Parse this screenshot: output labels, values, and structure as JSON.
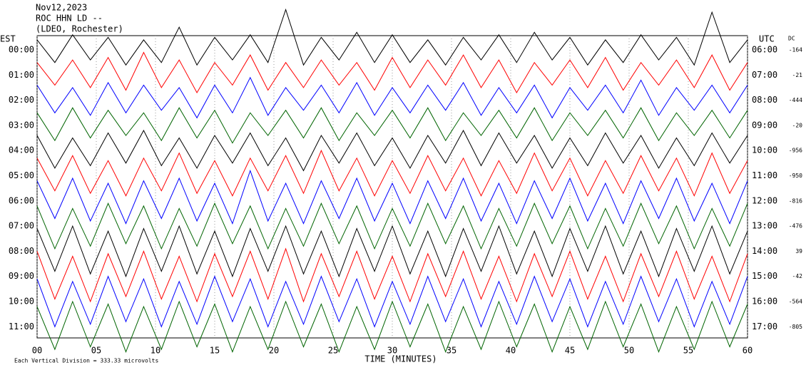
{
  "chart_data": {
    "type": "helicorder",
    "title": "Nov12,2023",
    "subtitle": "ROC HHN LD --",
    "station": "(LDEO, Rochester)",
    "left_axis_label": "EST",
    "right_axis_label": "UTC",
    "dc_label": "DC",
    "xlabel": "TIME (MINUTES)",
    "footnote": "Each Vertical Division = 333.33 microvolts",
    "xlim": [
      0,
      60
    ],
    "xticks": [
      {
        "value": 0,
        "label": "00"
      },
      {
        "value": 5,
        "label": "05"
      },
      10,
      15,
      20,
      25,
      30,
      35,
      40,
      45,
      50,
      55,
      60
    ],
    "x": [
      0,
      1.5,
      3,
      4.5,
      6,
      7.5,
      9,
      10.5,
      12,
      13.5,
      15,
      16.5,
      18,
      19.5,
      21,
      22.5,
      24,
      25.5,
      27,
      28.5,
      30,
      31.5,
      33,
      34.5,
      36,
      37.5,
      39,
      40.5,
      42,
      43.5,
      45,
      46.5,
      48,
      49.5,
      51,
      52.5,
      54,
      55.5,
      57,
      58.5,
      60
    ],
    "rows": [
      {
        "est": "00:00",
        "utc": "06:00",
        "dc": -164,
        "color": "#000000",
        "values": [
          0.4,
          -0.5,
          0.6,
          -0.4,
          0.5,
          -0.6,
          0.4,
          -0.5,
          0.9,
          -0.6,
          0.5,
          -0.4,
          0.6,
          -0.5,
          1.6,
          -0.6,
          0.5,
          -0.4,
          0.7,
          -0.5,
          0.6,
          -0.5,
          0.4,
          -0.6,
          0.5,
          -0.4,
          0.6,
          -0.5,
          0.7,
          -0.4,
          0.5,
          -0.6,
          0.4,
          -0.5,
          0.6,
          -0.4,
          0.5,
          -0.6,
          1.5,
          -0.5,
          0.4
        ]
      },
      {
        "est": "01:00",
        "utc": "07:00",
        "dc": -21,
        "color": "#ff0000",
        "values": [
          0.5,
          -0.4,
          0.6,
          -0.5,
          0.7,
          -0.6,
          0.9,
          -0.5,
          0.6,
          -0.7,
          0.5,
          -0.4,
          0.8,
          -0.6,
          0.5,
          -0.5,
          0.6,
          -0.4,
          0.5,
          -0.6,
          0.7,
          -0.5,
          0.6,
          -0.4,
          0.8,
          -0.5,
          0.6,
          -0.7,
          0.5,
          -0.4,
          0.6,
          -0.5,
          0.7,
          -0.6,
          0.5,
          -0.4,
          0.6,
          -0.5,
          0.8,
          -0.6,
          0.5
        ]
      },
      {
        "est": "02:00",
        "utc": "08:00",
        "dc": -444,
        "color": "#0000ff",
        "values": [
          0.6,
          -0.5,
          0.5,
          -0.6,
          0.7,
          -0.5,
          0.6,
          -0.4,
          0.5,
          -0.7,
          0.6,
          -0.5,
          0.9,
          -0.6,
          0.5,
          -0.4,
          0.6,
          -0.5,
          0.7,
          -0.6,
          0.5,
          -0.5,
          0.6,
          -0.4,
          0.7,
          -0.6,
          0.5,
          -0.5,
          0.6,
          -0.7,
          0.5,
          -0.4,
          0.6,
          -0.5,
          0.8,
          -0.6,
          0.5,
          -0.4,
          0.6,
          -0.5,
          0.6
        ]
      },
      {
        "est": "03:00",
        "utc": "09:00",
        "dc": -20,
        "color": "#006400",
        "values": [
          0.5,
          -0.6,
          0.7,
          -0.5,
          0.6,
          -0.4,
          0.5,
          -0.6,
          0.7,
          -0.5,
          0.6,
          -0.7,
          0.5,
          -0.4,
          0.6,
          -0.5,
          0.7,
          -0.6,
          0.5,
          -0.4,
          0.6,
          -0.5,
          0.7,
          -0.6,
          0.5,
          -0.4,
          0.6,
          -0.5,
          0.7,
          -0.6,
          0.5,
          -0.4,
          0.6,
          -0.5,
          0.7,
          -0.6,
          0.5,
          -0.4,
          0.6,
          -0.5,
          0.6
        ]
      },
      {
        "est": "04:00",
        "utc": "10:00",
        "dc": -956,
        "color": "#000000",
        "values": [
          0.6,
          -0.7,
          0.5,
          -0.6,
          0.7,
          -0.5,
          0.8,
          -0.6,
          0.5,
          -0.7,
          0.6,
          -0.5,
          0.7,
          -0.6,
          0.5,
          -0.8,
          0.6,
          -0.5,
          0.7,
          -0.6,
          0.5,
          -0.7,
          0.6,
          -0.5,
          0.8,
          -0.6,
          0.7,
          -0.5,
          0.6,
          -0.7,
          0.5,
          -0.6,
          0.7,
          -0.5,
          0.6,
          -0.7,
          0.5,
          -0.6,
          0.7,
          -0.5,
          0.6
        ]
      },
      {
        "est": "05:00",
        "utc": "11:00",
        "dc": -950,
        "color": "#ff0000",
        "values": [
          0.7,
          -0.6,
          0.8,
          -0.7,
          0.6,
          -0.8,
          0.7,
          -0.6,
          0.9,
          -0.7,
          0.6,
          -0.8,
          0.7,
          -0.6,
          0.8,
          -0.7,
          1.0,
          -0.6,
          0.7,
          -0.8,
          0.6,
          -0.7,
          0.8,
          -0.6,
          0.7,
          -0.8,
          0.6,
          -0.7,
          0.9,
          -0.6,
          0.7,
          -0.8,
          0.6,
          -0.7,
          0.8,
          -0.6,
          0.7,
          -0.8,
          0.9,
          -0.7,
          0.6
        ]
      },
      {
        "est": "06:00",
        "utc": "12:00",
        "dc": -816,
        "color": "#0000ff",
        "values": [
          0.8,
          -0.7,
          0.9,
          -0.8,
          0.7,
          -0.9,
          0.8,
          -0.7,
          0.9,
          -0.8,
          0.7,
          -0.9,
          1.2,
          -0.8,
          0.7,
          -0.9,
          0.8,
          -0.7,
          0.9,
          -0.8,
          0.7,
          -0.9,
          0.8,
          -0.7,
          0.9,
          -0.8,
          0.7,
          -0.9,
          0.8,
          -0.7,
          0.9,
          -0.8,
          0.7,
          -0.9,
          0.8,
          -0.7,
          0.9,
          -0.8,
          0.7,
          -0.9,
          0.8
        ]
      },
      {
        "est": "07:00",
        "utc": "13:00",
        "dc": -476,
        "color": "#006400",
        "values": [
          0.8,
          -0.9,
          0.7,
          -0.8,
          0.9,
          -0.7,
          0.8,
          -0.9,
          0.7,
          -0.8,
          0.9,
          -0.7,
          0.8,
          -0.9,
          0.7,
          -0.8,
          0.9,
          -0.7,
          0.8,
          -0.9,
          0.7,
          -0.8,
          0.9,
          -0.7,
          0.8,
          -0.9,
          0.7,
          -0.8,
          0.9,
          -0.7,
          0.8,
          -0.9,
          0.7,
          -0.8,
          0.9,
          -0.7,
          0.8,
          -0.9,
          0.7,
          -0.8,
          0.9
        ]
      },
      {
        "est": "08:00",
        "utc": "14:00",
        "dc": 39,
        "color": "#000000",
        "values": [
          0.9,
          -0.8,
          1.0,
          -0.9,
          0.8,
          -1.0,
          0.9,
          -0.8,
          1.0,
          -0.9,
          0.8,
          -1.0,
          0.9,
          -0.8,
          1.0,
          -0.9,
          0.8,
          -1.0,
          0.9,
          -0.8,
          1.0,
          -0.9,
          0.8,
          -1.0,
          0.9,
          -0.8,
          1.0,
          -0.9,
          0.8,
          -1.0,
          0.9,
          -0.8,
          1.0,
          -0.9,
          0.8,
          -1.0,
          0.9,
          -0.8,
          1.0,
          -0.9,
          0.8
        ]
      },
      {
        "est": "09:00",
        "utc": "15:00",
        "dc": -42,
        "color": "#ff0000",
        "values": [
          1.0,
          -0.9,
          0.8,
          -1.0,
          0.9,
          -0.8,
          1.0,
          -0.9,
          0.8,
          -1.0,
          0.9,
          -0.8,
          1.0,
          -0.9,
          1.1,
          -1.0,
          0.9,
          -0.8,
          1.0,
          -0.9,
          0.8,
          -1.0,
          0.9,
          -0.8,
          1.0,
          -0.9,
          0.8,
          -1.0,
          0.9,
          -0.8,
          1.0,
          -0.9,
          0.8,
          -1.0,
          0.9,
          -0.8,
          1.0,
          -0.9,
          0.8,
          -1.0,
          0.9
        ]
      },
      {
        "est": "10:00",
        "utc": "16:00",
        "dc": -564,
        "color": "#0000ff",
        "values": [
          0.9,
          -1.0,
          0.8,
          -0.9,
          1.0,
          -0.8,
          0.9,
          -1.0,
          0.8,
          -0.9,
          1.0,
          -0.8,
          0.9,
          -1.0,
          0.8,
          -0.9,
          1.0,
          -0.8,
          0.9,
          -1.0,
          0.8,
          -0.9,
          1.0,
          -0.8,
          0.9,
          -1.0,
          0.8,
          -0.9,
          1.0,
          -0.8,
          0.9,
          -1.0,
          0.8,
          -0.9,
          1.0,
          -0.8,
          0.9,
          -1.0,
          0.8,
          -0.9,
          1.0
        ]
      },
      {
        "est": "11:00",
        "utc": "17:00",
        "dc": -805,
        "color": "#006400",
        "values": [
          0.8,
          -0.9,
          1.0,
          -0.8,
          0.9,
          -1.0,
          0.8,
          -0.9,
          1.0,
          -0.8,
          0.9,
          -1.0,
          0.8,
          -0.9,
          1.0,
          -0.8,
          0.9,
          -1.0,
          0.8,
          -0.9,
          1.0,
          -0.8,
          0.9,
          -1.0,
          0.8,
          -0.9,
          1.0,
          -0.8,
          0.9,
          -1.0,
          0.8,
          -0.9,
          1.0,
          -0.8,
          0.9,
          -1.0,
          0.8,
          -0.9,
          1.0,
          -0.8,
          0.9
        ]
      }
    ]
  }
}
